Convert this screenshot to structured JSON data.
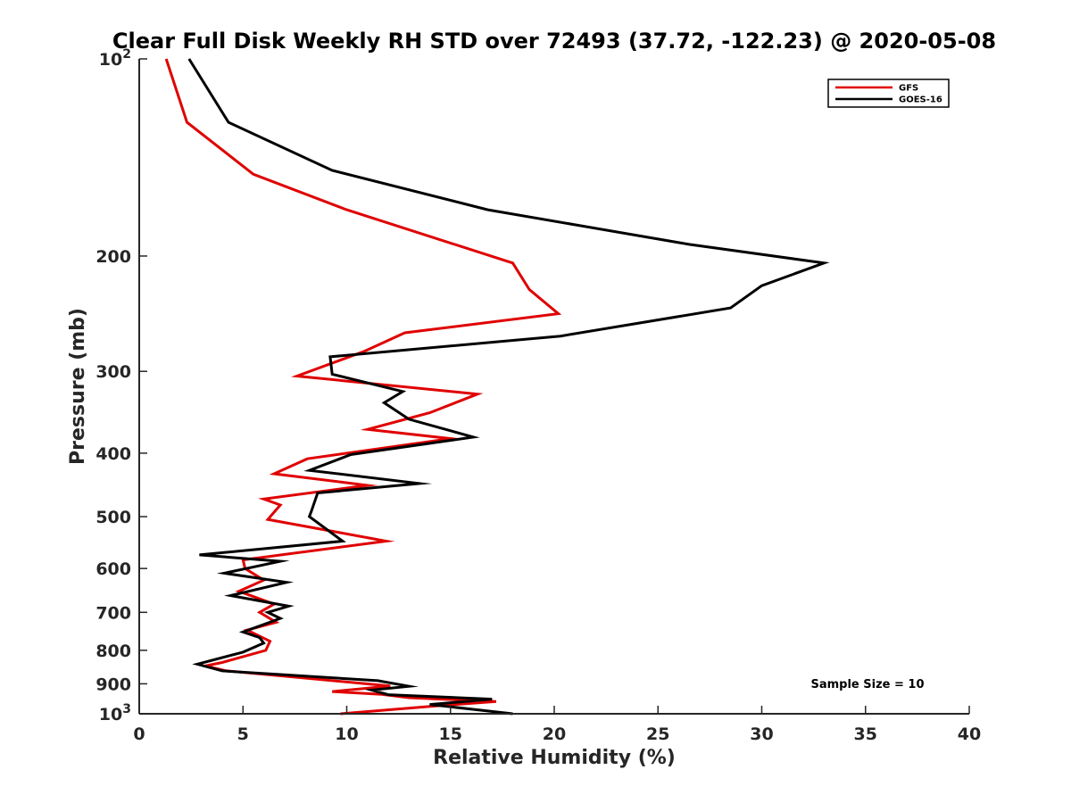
{
  "chart_data": {
    "type": "line",
    "title": "Clear Full Disk Weekly RH STD over 72493 (37.72, -122.23) @ 2020-05-08",
    "xlabel": "Relative Humidity (%)",
    "ylabel": "Pressure (mb)",
    "xlim": [
      0,
      40
    ],
    "ylim": [
      100,
      1000
    ],
    "y_scale": "log",
    "y_reversed": true,
    "grid": false,
    "legend_position": "top-right",
    "x_ticks": [
      0,
      5,
      10,
      15,
      20,
      25,
      30,
      35,
      40
    ],
    "y_ticks": [
      {
        "value": 100,
        "base": "10",
        "exp": "2"
      },
      {
        "value": 200,
        "label": "200"
      },
      {
        "value": 300,
        "label": "300"
      },
      {
        "value": 400,
        "label": "400"
      },
      {
        "value": 500,
        "label": "500"
      },
      {
        "value": 600,
        "label": "600"
      },
      {
        "value": 700,
        "label": "700"
      },
      {
        "value": 800,
        "label": "800"
      },
      {
        "value": 900,
        "label": "900"
      },
      {
        "value": 1000,
        "base": "10",
        "exp": "3"
      }
    ],
    "annotation": "Sample Size = 10",
    "series": [
      {
        "name": "GFS",
        "color": "#e00000",
        "points": [
          [
            1.3,
            100
          ],
          [
            2.3,
            125
          ],
          [
            5.5,
            150
          ],
          [
            10,
            170
          ],
          [
            18,
            205
          ],
          [
            18.8,
            225
          ],
          [
            20.2,
            245
          ],
          [
            12.8,
            262
          ],
          [
            10.8,
            280
          ],
          [
            7.6,
            305
          ],
          [
            16.3,
            325
          ],
          [
            14.0,
            347
          ],
          [
            11.0,
            368
          ],
          [
            15.0,
            380
          ],
          [
            8.1,
            408
          ],
          [
            6.5,
            430
          ],
          [
            11.0,
            448
          ],
          [
            6.0,
            470
          ],
          [
            6.8,
            480
          ],
          [
            6.2,
            505
          ],
          [
            11.9,
            545
          ],
          [
            5.0,
            582
          ],
          [
            5.1,
            600
          ],
          [
            6.0,
            625
          ],
          [
            4.8,
            650
          ],
          [
            6.5,
            680
          ],
          [
            5.8,
            700
          ],
          [
            6.6,
            725
          ],
          [
            5.2,
            745
          ],
          [
            6.3,
            775
          ],
          [
            6.1,
            800
          ],
          [
            4.0,
            835
          ],
          [
            3.2,
            845
          ],
          [
            4.2,
            860
          ],
          [
            8.0,
            882
          ],
          [
            12.1,
            907
          ],
          [
            9.3,
            925
          ],
          [
            11.7,
            934
          ],
          [
            13.0,
            945
          ],
          [
            17.2,
            958
          ],
          [
            14.8,
            970
          ],
          [
            9.7,
            1000
          ]
        ]
      },
      {
        "name": "GOES-16",
        "color": "#000000",
        "points": [
          [
            2.4,
            100
          ],
          [
            4.3,
            125
          ],
          [
            9.3,
            148
          ],
          [
            16.8,
            170
          ],
          [
            26.5,
            192
          ],
          [
            33.0,
            205
          ],
          [
            30.0,
            222
          ],
          [
            28.5,
            240
          ],
          [
            20.3,
            265
          ],
          [
            9.2,
            285
          ],
          [
            9.3,
            303
          ],
          [
            12.7,
            322
          ],
          [
            11.8,
            335
          ],
          [
            13.0,
            355
          ],
          [
            16.1,
            378
          ],
          [
            10.2,
            402
          ],
          [
            8.2,
            425
          ],
          [
            13.5,
            445
          ],
          [
            8.6,
            460
          ],
          [
            8.3,
            490
          ],
          [
            8.2,
            500
          ],
          [
            9.8,
            545
          ],
          [
            2.9,
            572
          ],
          [
            6.8,
            585
          ],
          [
            4.1,
            610
          ],
          [
            7.1,
            630
          ],
          [
            4.4,
            660
          ],
          [
            7.2,
            685
          ],
          [
            6.2,
            700
          ],
          [
            6.8,
            715
          ],
          [
            5.0,
            750
          ],
          [
            5.8,
            765
          ],
          [
            6.0,
            780
          ],
          [
            5.0,
            805
          ],
          [
            2.8,
            840
          ],
          [
            4.0,
            860
          ],
          [
            11.5,
            890
          ],
          [
            13.0,
            908
          ],
          [
            11.2,
            920
          ],
          [
            12.0,
            935
          ],
          [
            17.0,
            950
          ],
          [
            14.0,
            968
          ],
          [
            18.0,
            1000
          ]
        ]
      }
    ]
  }
}
